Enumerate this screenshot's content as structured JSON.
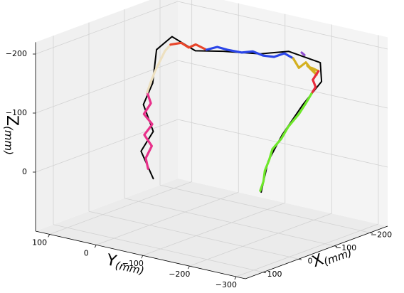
{
  "chart_data": {
    "type": "line3d",
    "xlabel": "X",
    "ylabel": "Y",
    "zlabel": "Z",
    "unit": "(mm)",
    "xlim": [
      -250,
      150
    ],
    "ylim": [
      -320,
      130
    ],
    "zlim": [
      100,
      -220
    ],
    "xticks": [
      {
        "value": -200,
        "label": "−200"
      },
      {
        "value": -100,
        "label": "−100"
      },
      0,
      100
    ],
    "yticks": [
      100,
      0,
      {
        "value": -100,
        "label": "−100"
      },
      {
        "value": -200,
        "label": "−200"
      },
      {
        "value": -300,
        "label": "−300"
      }
    ],
    "zticks": [
      {
        "value": -200,
        "label": "−200"
      },
      {
        "value": -100,
        "label": "−100"
      },
      0
    ],
    "grid": true,
    "series": [
      {
        "color": "#000000",
        "x": [
          55,
          50,
          55,
          50,
          50,
          0,
          -50,
          -50,
          -50,
          -50,
          -50,
          -100,
          -110,
          -150,
          -150,
          -150,
          -150
        ],
        "y": [
          -50,
          -20,
          -50,
          -25,
          -45,
          -15,
          -10,
          -60,
          -120,
          -200,
          -260,
          -290,
          -285,
          -215,
          -170,
          -140,
          -125
        ],
        "z": [
          0,
          -40,
          -80,
          -120,
          -160,
          -200,
          -210,
          -195,
          -205,
          -215,
          -230,
          -205,
          -170,
          -110,
          -50,
          0,
          55
        ]
      },
      {
        "color": "#e8308a",
        "x": [
          50,
          50,
          50,
          50,
          50,
          50,
          50,
          50
        ],
        "y": [
          -35,
          -30,
          -43,
          -27,
          -44,
          -26,
          -41,
          -33
        ],
        "z": [
          -13,
          -30,
          -53,
          -69,
          -90,
          -104,
          -125,
          -142
        ]
      },
      {
        "color": "#ede0c0",
        "x": [
          50,
          50,
          50,
          0,
          -25,
          -50
        ],
        "y": [
          -33,
          -41,
          -50,
          -23,
          -14,
          -7
        ],
        "z": [
          -142,
          -161,
          -181,
          -183,
          -192,
          -196
        ]
      },
      {
        "color": "#e8452a",
        "x": [
          -50,
          -50,
          -50,
          -50,
          -50
        ],
        "y": [
          -7,
          -30,
          -46,
          -61,
          -84
        ],
        "z": [
          -196,
          -203,
          -198,
          -206,
          -201
        ]
      },
      {
        "color": "#2a45e8",
        "x": [
          -50,
          -50,
          -50,
          -50,
          -50,
          -50,
          -50,
          -50,
          -50
        ],
        "y": [
          -84,
          -107,
          -129,
          -160,
          -183,
          -206,
          -229,
          -251,
          -270
        ],
        "z": [
          -201,
          -210,
          -209,
          -210,
          -216,
          -213,
          -215,
          -225,
          -220
        ]
      },
      {
        "color": "#9050d0",
        "x": [
          -100,
          -100
        ],
        "y": [
          -250,
          -256
        ],
        "z": [
          -215,
          -212
        ]
      },
      {
        "color": "#d4b020",
        "x": [
          -50,
          -100,
          -100,
          -100,
          -100,
          -100,
          -100,
          -100
        ],
        "y": [
          -270,
          -244,
          -259,
          -274,
          -262,
          -282,
          -271,
          -286
        ],
        "z": [
          -220,
          -188,
          -200,
          -188,
          -195,
          -183,
          -193,
          -190
        ]
      },
      {
        "color": "#e82a3a",
        "x": [
          -100,
          -100,
          -100,
          -100
        ],
        "y": [
          -286,
          -274,
          -280,
          -271
        ],
        "z": [
          -190,
          -173,
          -162,
          -149
        ]
      },
      {
        "color": "#6ee82a",
        "x": [
          -100,
          -150,
          -150,
          -150,
          -150,
          -150,
          -150,
          -150,
          -150,
          -150
        ],
        "y": [
          -271,
          -221,
          -206,
          -183,
          -168,
          -149,
          -142,
          -133,
          -130,
          -123
        ],
        "z": [
          -149,
          -113,
          -92,
          -66,
          -43,
          -22,
          -2,
          17,
          36,
          53
        ]
      }
    ]
  }
}
